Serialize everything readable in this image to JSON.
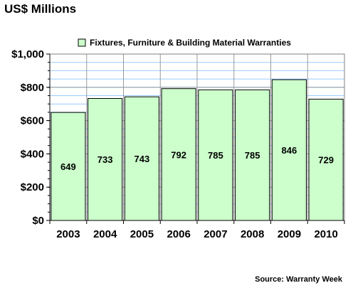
{
  "title": "US$ Millions",
  "source": "Source: Warranty Week",
  "chart_data": {
    "type": "bar",
    "title": "US$ Millions",
    "categories": [
      "2003",
      "2004",
      "2005",
      "2006",
      "2007",
      "2008",
      "2009",
      "2010"
    ],
    "series": [
      {
        "name": "Fixtures, Furniture & Building Material Warranties",
        "values": [
          649,
          733,
          743,
          792,
          785,
          785,
          846,
          729
        ]
      }
    ],
    "data_labels": [
      "649",
      "733",
      "743",
      "792",
      "785",
      "785",
      "846",
      "729"
    ],
    "ylim": [
      0,
      1000
    ],
    "y_ticks": [
      0,
      200,
      400,
      600,
      800,
      1000
    ],
    "y_tick_labels": [
      "$0",
      "$200",
      "$400",
      "$600",
      "$800",
      "$1,000"
    ],
    "grid": true,
    "legend_position": "top",
    "colors": {
      "bar_fill": "#ccffcc",
      "bar_stroke": "#000000",
      "grid": "#99ccff",
      "axis": "#808080"
    }
  }
}
